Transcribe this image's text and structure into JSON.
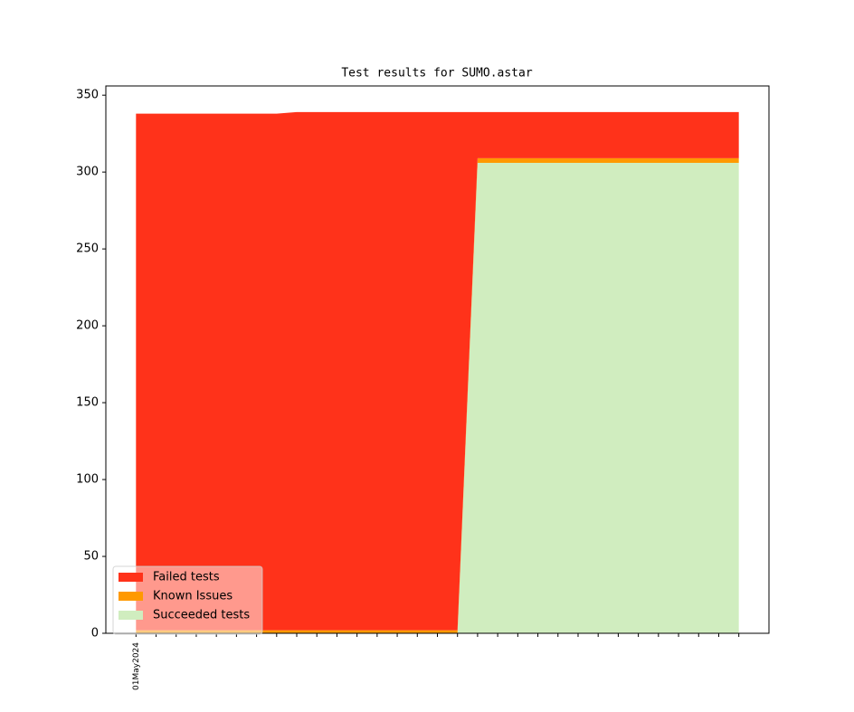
{
  "chart_data": {
    "type": "stacked_area",
    "title": "Test results for SUMO.astar",
    "categories": [
      "01May2024",
      null,
      null,
      null,
      null,
      null,
      null,
      null,
      null,
      null,
      null,
      null,
      null,
      null,
      null,
      null,
      null,
      null,
      null,
      null,
      null,
      null,
      null,
      null,
      null,
      null,
      null,
      null,
      null,
      null,
      null
    ],
    "series": [
      {
        "name": "Failed tests",
        "color": "#ff321a",
        "values": [
          336,
          336,
          336,
          336,
          336,
          336,
          336,
          336,
          337,
          337,
          337,
          337,
          337,
          337,
          337,
          337,
          337,
          30,
          30,
          30,
          30,
          30,
          30,
          30,
          30,
          30,
          30,
          30,
          30,
          30,
          30
        ]
      },
      {
        "name": "Known Issues",
        "color": "#ff9900",
        "values": [
          2,
          2,
          2,
          2,
          2,
          2,
          2,
          2,
          2,
          2,
          2,
          2,
          2,
          2,
          2,
          2,
          2,
          3,
          3,
          3,
          3,
          3,
          3,
          3,
          3,
          3,
          3,
          3,
          3,
          3,
          3
        ]
      },
      {
        "name": "Succeeded tests",
        "color": "#d0edbf",
        "values": [
          0,
          0,
          0,
          0,
          0,
          0,
          0,
          0,
          0,
          0,
          0,
          0,
          0,
          0,
          0,
          0,
          0,
          306,
          306,
          306,
          306,
          306,
          306,
          306,
          306,
          306,
          306,
          306,
          306,
          306,
          306
        ]
      }
    ],
    "ylim": [
      0,
      356
    ],
    "yticks": [
      0,
      50,
      100,
      150,
      200,
      250,
      300,
      350
    ],
    "legend": "lower left"
  }
}
